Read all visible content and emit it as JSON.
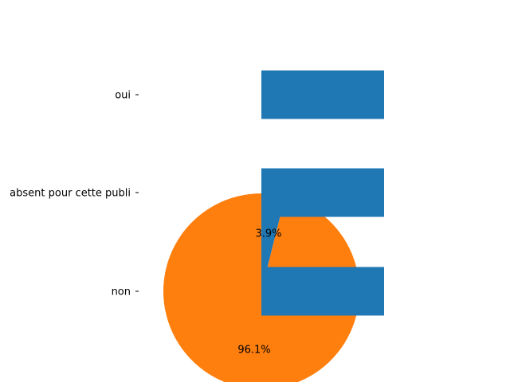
{
  "chart_data": [
    {
      "type": "bar",
      "orientation": "horizontal",
      "categories": [
        "oui",
        "absent pour cette publi",
        "non"
      ],
      "values": [
        1,
        1,
        1
      ],
      "color": "#1f77b4",
      "axis": {
        "x_visible": false,
        "y_ticks_shown": true
      }
    },
    {
      "type": "pie",
      "slices": [
        {
          "label": "",
          "value": 96.1,
          "pct_label": "96.1%",
          "color": "#ff7f0e"
        },
        {
          "label": "",
          "value": 3.9,
          "pct_label": "3.9%",
          "color": "#1f77b4"
        }
      ],
      "start_angle_deg": 90,
      "direction": "counterclockwise"
    }
  ]
}
